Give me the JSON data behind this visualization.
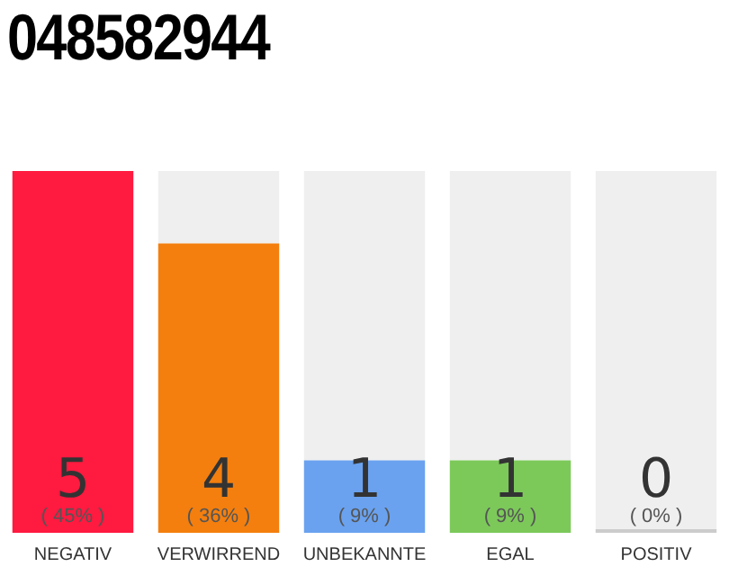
{
  "chart_data": {
    "type": "bar",
    "title": "048582944",
    "stacked": true,
    "categories": [
      "NEGATIV",
      "VERWIRREND",
      "UNBEKANNTE",
      "EGAL",
      "POSITIV"
    ],
    "series": [
      {
        "colors": [
          "#ff1a40",
          "#f47f0e",
          "#6aa2ef",
          "#7cc95a",
          "#cccccc"
        ],
        "values": [
          5,
          4,
          1,
          1,
          0
        ],
        "value_labels": [
          "5\n( 45% )",
          "4\n( 36% )",
          "1\n( 9% )",
          "1\n( 9% )",
          "0\n( 0% )"
        ]
      },
      {
        "color": "#efefef",
        "values": [
          0,
          1,
          4,
          4,
          5
        ]
      }
    ],
    "ylim": [
      0,
      5
    ],
    "tick_labels": "x",
    "grid": false,
    "legend": false
  }
}
